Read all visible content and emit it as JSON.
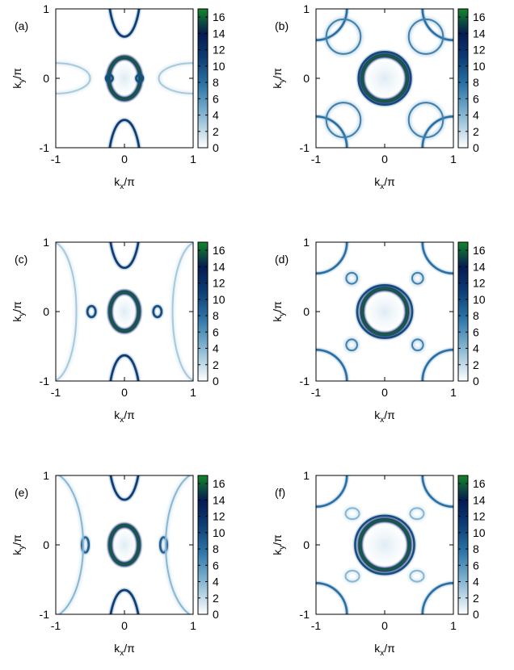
{
  "chart_data": [
    {
      "type": "heatmap",
      "panel_label": "(a)",
      "xlabel": "k",
      "xlabel_sub": "x",
      "xlabel_suffix": "/π",
      "ylabel": "k",
      "ylabel_sub": "y",
      "ylabel_suffix": "/π",
      "xlim": [
        -1,
        1
      ],
      "ylim": [
        -1,
        1
      ],
      "xticks": [
        "-1",
        "0",
        "1"
      ],
      "yticks": [
        "-1",
        "0",
        "1"
      ],
      "colorbar": {
        "min": 0,
        "max": 17,
        "ticks": [
          "0",
          "2",
          "4",
          "6",
          "8",
          "10",
          "12",
          "14",
          "16"
        ]
      },
      "features": [
        {
          "kind": "ring",
          "cx": 0,
          "cy": 0,
          "rx": 0.23,
          "ry": 0.3,
          "value": 16
        },
        {
          "kind": "ring",
          "cx": -0.22,
          "cy": 0,
          "rx": 0.05,
          "ry": 0.05,
          "value": 10
        },
        {
          "kind": "ring",
          "cx": 0.22,
          "cy": 0,
          "rx": 0.05,
          "ry": 0.05,
          "value": 10
        },
        {
          "kind": "arc",
          "cx": 0,
          "cy": 1.25,
          "rx": 0.23,
          "ry": 0.65,
          "value": 11
        },
        {
          "kind": "arc",
          "cx": 0,
          "cy": -1.25,
          "rx": 0.23,
          "ry": 0.65,
          "value": 11
        },
        {
          "kind": "arc",
          "cx": -1.0,
          "cy": 0,
          "rx": 0.5,
          "ry": 0.22,
          "value": 3
        },
        {
          "kind": "arc",
          "cx": 1.0,
          "cy": 0,
          "rx": 0.5,
          "ry": 0.22,
          "value": 3
        }
      ]
    },
    {
      "type": "heatmap",
      "panel_label": "(b)",
      "xlabel": "k",
      "xlabel_sub": "x",
      "xlabel_suffix": "/π",
      "ylabel": "k",
      "ylabel_sub": "y",
      "ylabel_suffix": "/π",
      "xlim": [
        -1,
        1
      ],
      "ylim": [
        -1,
        1
      ],
      "xticks": [
        "-1",
        "0",
        "1"
      ],
      "yticks": [
        "-1",
        "0",
        "1"
      ],
      "colorbar": {
        "min": 0,
        "max": 17,
        "ticks": [
          "0",
          "2",
          "4",
          "6",
          "8",
          "10",
          "12",
          "14",
          "16"
        ]
      },
      "features": [
        {
          "kind": "ring",
          "cx": 0,
          "cy": 0,
          "rx": 0.38,
          "ry": 0.38,
          "value": 10
        },
        {
          "kind": "ring",
          "cx": 0,
          "cy": 0,
          "rx": 0.33,
          "ry": 0.33,
          "value": 16
        },
        {
          "kind": "arc",
          "cx": -1,
          "cy": 1,
          "rx": 0.45,
          "ry": 0.45,
          "value": 8
        },
        {
          "kind": "arc",
          "cx": 1,
          "cy": 1,
          "rx": 0.45,
          "ry": 0.45,
          "value": 8
        },
        {
          "kind": "arc",
          "cx": -1,
          "cy": -1,
          "rx": 0.45,
          "ry": 0.45,
          "value": 8
        },
        {
          "kind": "arc",
          "cx": 1,
          "cy": -1,
          "rx": 0.45,
          "ry": 0.45,
          "value": 8
        },
        {
          "kind": "arc",
          "cx": -0.6,
          "cy": 0.6,
          "rx": 0.25,
          "ry": 0.25,
          "value": 7
        },
        {
          "kind": "arc",
          "cx": 0.6,
          "cy": 0.6,
          "rx": 0.25,
          "ry": 0.25,
          "value": 7
        },
        {
          "kind": "arc",
          "cx": -0.6,
          "cy": -0.6,
          "rx": 0.25,
          "ry": 0.25,
          "value": 7
        },
        {
          "kind": "arc",
          "cx": 0.6,
          "cy": -0.6,
          "rx": 0.25,
          "ry": 0.25,
          "value": 7
        }
      ]
    },
    {
      "type": "heatmap",
      "panel_label": "(c)",
      "xlabel": "k",
      "xlabel_sub": "x",
      "xlabel_suffix": "/π",
      "ylabel": "k",
      "ylabel_sub": "y",
      "ylabel_suffix": "/π",
      "xlim": [
        -1,
        1
      ],
      "ylim": [
        -1,
        1
      ],
      "xticks": [
        "-1",
        "0",
        "1"
      ],
      "yticks": [
        "-1",
        "0",
        "1"
      ],
      "colorbar": {
        "min": 0,
        "max": 17,
        "ticks": [
          "0",
          "2",
          "4",
          "6",
          "8",
          "10",
          "12",
          "14",
          "16"
        ]
      },
      "features": [
        {
          "kind": "ring",
          "cx": 0,
          "cy": 0,
          "rx": 0.21,
          "ry": 0.28,
          "value": 16
        },
        {
          "kind": "ring",
          "cx": -0.48,
          "cy": 0,
          "rx": 0.06,
          "ry": 0.08,
          "value": 10
        },
        {
          "kind": "ring",
          "cx": 0.48,
          "cy": 0,
          "rx": 0.06,
          "ry": 0.08,
          "value": 10
        },
        {
          "kind": "arc",
          "cx": 0,
          "cy": 1.25,
          "rx": 0.22,
          "ry": 0.62,
          "value": 11
        },
        {
          "kind": "arc",
          "cx": 0,
          "cy": -1.25,
          "rx": 0.22,
          "ry": 0.62,
          "value": 11
        },
        {
          "kind": "arc",
          "cx": -1.05,
          "cy": 0,
          "rx": 0.35,
          "ry": 1.0,
          "value": 3
        },
        {
          "kind": "arc",
          "cx": 1.05,
          "cy": 0,
          "rx": 0.35,
          "ry": 1.0,
          "value": 3
        }
      ]
    },
    {
      "type": "heatmap",
      "panel_label": "(d)",
      "xlabel": "k",
      "xlabel_sub": "x",
      "xlabel_suffix": "/π",
      "ylabel": "k",
      "ylabel_sub": "y",
      "ylabel_suffix": "/π",
      "xlim": [
        -1,
        1
      ],
      "ylim": [
        -1,
        1
      ],
      "xticks": [
        "-1",
        "0",
        "1"
      ],
      "yticks": [
        "-1",
        "0",
        "1"
      ],
      "colorbar": {
        "min": 0,
        "max": 17,
        "ticks": [
          "0",
          "2",
          "4",
          "6",
          "8",
          "10",
          "12",
          "14",
          "16"
        ]
      },
      "features": [
        {
          "kind": "ring",
          "cx": 0,
          "cy": 0,
          "rx": 0.4,
          "ry": 0.38,
          "value": 10
        },
        {
          "kind": "ring",
          "cx": 0,
          "cy": 0,
          "rx": 0.33,
          "ry": 0.33,
          "value": 16
        },
        {
          "kind": "arc",
          "cx": -1,
          "cy": 1,
          "rx": 0.45,
          "ry": 0.45,
          "value": 8
        },
        {
          "kind": "arc",
          "cx": 1,
          "cy": 1,
          "rx": 0.45,
          "ry": 0.45,
          "value": 8
        },
        {
          "kind": "arc",
          "cx": -1,
          "cy": -1,
          "rx": 0.45,
          "ry": 0.45,
          "value": 8
        },
        {
          "kind": "arc",
          "cx": 1,
          "cy": -1,
          "rx": 0.45,
          "ry": 0.45,
          "value": 8
        },
        {
          "kind": "ring",
          "cx": -0.48,
          "cy": 0.48,
          "rx": 0.08,
          "ry": 0.08,
          "value": 7
        },
        {
          "kind": "ring",
          "cx": 0.48,
          "cy": 0.48,
          "rx": 0.08,
          "ry": 0.08,
          "value": 7
        },
        {
          "kind": "ring",
          "cx": -0.48,
          "cy": -0.48,
          "rx": 0.08,
          "ry": 0.08,
          "value": 7
        },
        {
          "kind": "ring",
          "cx": 0.48,
          "cy": -0.48,
          "rx": 0.08,
          "ry": 0.08,
          "value": 7
        }
      ]
    },
    {
      "type": "heatmap",
      "panel_label": "(e)",
      "xlabel": "k",
      "xlabel_sub": "x",
      "xlabel_suffix": "/π",
      "ylabel": "k",
      "ylabel_sub": "y",
      "ylabel_suffix": "/π",
      "xlim": [
        -1,
        1
      ],
      "ylim": [
        -1,
        1
      ],
      "xticks": [
        "-1",
        "0",
        "1"
      ],
      "yticks": [
        "-1",
        "0",
        "1"
      ],
      "colorbar": {
        "min": 0,
        "max": 17,
        "ticks": [
          "0",
          "2",
          "4",
          "6",
          "8",
          "10",
          "12",
          "14",
          "16"
        ]
      },
      "features": [
        {
          "kind": "ring",
          "cx": 0,
          "cy": 0,
          "rx": 0.21,
          "ry": 0.28,
          "value": 16
        },
        {
          "kind": "ring",
          "cx": -0.57,
          "cy": 0,
          "rx": 0.05,
          "ry": 0.11,
          "value": 9
        },
        {
          "kind": "ring",
          "cx": 0.57,
          "cy": 0,
          "rx": 0.05,
          "ry": 0.11,
          "value": 9
        },
        {
          "kind": "arc",
          "cx": 0,
          "cy": 1.25,
          "rx": 0.22,
          "ry": 0.6,
          "value": 11
        },
        {
          "kind": "arc",
          "cx": 0,
          "cy": -1.25,
          "rx": 0.22,
          "ry": 0.6,
          "value": 11
        },
        {
          "kind": "arc",
          "cx": -1.1,
          "cy": 0,
          "rx": 0.5,
          "ry": 1.05,
          "value": 4
        },
        {
          "kind": "arc",
          "cx": 1.1,
          "cy": 0,
          "rx": 0.5,
          "ry": 1.05,
          "value": 4
        }
      ]
    },
    {
      "type": "heatmap",
      "panel_label": "(f)",
      "xlabel": "k",
      "xlabel_sub": "x",
      "xlabel_suffix": "/π",
      "ylabel": "k",
      "ylabel_sub": "y",
      "ylabel_suffix": "/π",
      "xlim": [
        -1,
        1
      ],
      "ylim": [
        -1,
        1
      ],
      "xticks": [
        "-1",
        "0",
        "1"
      ],
      "yticks": [
        "-1",
        "0",
        "1"
      ],
      "colorbar": {
        "min": 0,
        "max": 17,
        "ticks": [
          "0",
          "2",
          "4",
          "6",
          "8",
          "10",
          "12",
          "14",
          "16"
        ]
      },
      "features": [
        {
          "kind": "ring",
          "cx": 0,
          "cy": 0,
          "rx": 0.43,
          "ry": 0.42,
          "value": 10
        },
        {
          "kind": "ring",
          "cx": 0,
          "cy": 0,
          "rx": 0.36,
          "ry": 0.36,
          "value": 16
        },
        {
          "kind": "arc",
          "cx": -1,
          "cy": 1,
          "rx": 0.45,
          "ry": 0.45,
          "value": 8
        },
        {
          "kind": "arc",
          "cx": 1,
          "cy": 1,
          "rx": 0.45,
          "ry": 0.45,
          "value": 8
        },
        {
          "kind": "arc",
          "cx": -1,
          "cy": -1,
          "rx": 0.45,
          "ry": 0.45,
          "value": 8
        },
        {
          "kind": "arc",
          "cx": 1,
          "cy": -1,
          "rx": 0.45,
          "ry": 0.45,
          "value": 8
        },
        {
          "kind": "ring",
          "cx": -0.47,
          "cy": 0.45,
          "rx": 0.1,
          "ry": 0.08,
          "value": 4
        },
        {
          "kind": "ring",
          "cx": 0.47,
          "cy": 0.45,
          "rx": 0.1,
          "ry": 0.08,
          "value": 4
        },
        {
          "kind": "ring",
          "cx": -0.47,
          "cy": -0.45,
          "rx": 0.1,
          "ry": 0.08,
          "value": 4
        },
        {
          "kind": "ring",
          "cx": 0.47,
          "cy": -0.45,
          "rx": 0.1,
          "ry": 0.08,
          "value": 4
        }
      ]
    }
  ]
}
